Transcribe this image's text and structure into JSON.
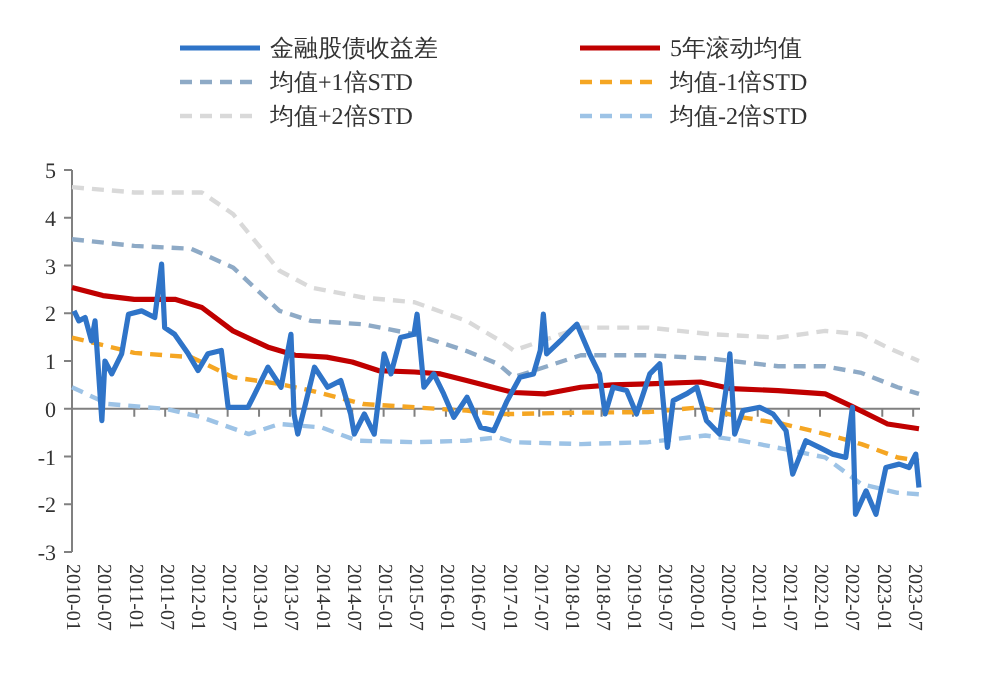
{
  "chart_data": {
    "type": "line",
    "legend": "top",
    "xlim": [
      "2010-01-01",
      "2023-08-10"
    ],
    "ylim": [
      -3,
      5
    ],
    "yticks": [
      -3,
      -2,
      -1,
      0,
      1,
      2,
      3,
      4,
      5
    ],
    "xticks": [
      "2010-01",
      "2010-07",
      "2011-01",
      "2011-07",
      "2012-01",
      "2012-07",
      "2013-01",
      "2013-07",
      "2014-01",
      "2014-07",
      "2015-01",
      "2015-07",
      "2016-01",
      "2016-07",
      "2017-01",
      "2017-07",
      "2018-01",
      "2018-07",
      "2019-01",
      "2019-07",
      "2020-01",
      "2020-07",
      "2021-01",
      "2021-07",
      "2022-01",
      "2022-07",
      "2023-01",
      "2023-07"
    ],
    "series": [
      {
        "name": "金融股债收益差",
        "color": "#2f74c8",
        "line_style": "solid",
        "x": [
          "2010-01-13",
          "2010-02-10",
          "2010-03-19",
          "2010-04-25",
          "2010-05-16",
          "2010-06-25",
          "2010-07-13",
          "2010-08-22",
          "2010-10-19",
          "2010-11-28",
          "2011-02-13",
          "2011-05-01",
          "2011-06-10",
          "2011-06-28",
          "2011-08-25",
          "2011-11-13",
          "2012-01-10",
          "2012-03-07",
          "2012-05-25",
          "2012-07-04",
          "2012-10-28",
          "2012-12-07",
          "2013-02-22",
          "2013-05-10",
          "2013-07-07",
          "2013-07-25",
          "2013-08-16",
          "2013-09-25",
          "2013-11-22",
          "2014-02-07",
          "2014-04-25",
          "2014-06-22",
          "2014-07-13",
          "2014-09-10",
          "2014-11-07",
          "2015-01-04",
          "2015-02-13",
          "2015-04-10",
          "2015-06-28",
          "2015-07-16",
          "2015-08-25",
          "2015-10-22",
          "2015-12-19",
          "2016-02-16",
          "2016-05-04",
          "2016-07-22",
          "2016-10-07",
          "2016-12-25",
          "2017-03-10",
          "2017-05-28",
          "2017-07-07",
          "2017-07-25",
          "2017-08-13",
          "2017-11-01",
          "2017-12-28",
          "2018-02-07",
          "2018-04-22",
          "2018-06-19",
          "2018-07-22",
          "2018-09-07",
          "2018-11-25",
          "2019-01-22",
          "2019-04-10",
          "2019-06-07",
          "2019-07-22",
          "2019-08-25",
          "2019-11-10",
          "2020-01-10",
          "2020-03-07",
          "2020-05-22",
          "2020-07-01",
          "2020-07-22",
          "2020-08-19",
          "2020-10-07",
          "2021-01-13",
          "2021-04-01",
          "2021-06-16",
          "2021-07-25",
          "2021-10-10",
          "2021-12-28",
          "2022-03-16",
          "2022-06-01",
          "2022-07-10",
          "2022-07-28",
          "2022-09-28",
          "2022-11-25",
          "2023-01-22",
          "2023-04-10",
          "2023-06-07",
          "2023-07-16",
          "2023-08-04"
        ],
        "values": [
          2.05,
          1.84,
          1.91,
          1.42,
          1.84,
          -0.25,
          1.0,
          0.73,
          1.15,
          1.98,
          2.05,
          1.91,
          3.03,
          1.7,
          1.56,
          1.15,
          0.8,
          1.15,
          1.22,
          0.03,
          0.03,
          0.31,
          0.87,
          0.45,
          1.56,
          -0.11,
          -0.53,
          0.03,
          0.87,
          0.45,
          0.59,
          -0.11,
          -0.53,
          -0.11,
          -0.53,
          1.15,
          0.73,
          1.49,
          1.56,
          1.98,
          0.45,
          0.73,
          0.31,
          -0.18,
          0.24,
          -0.39,
          -0.46,
          0.17,
          0.66,
          0.73,
          1.22,
          1.98,
          1.15,
          1.42,
          1.63,
          1.77,
          1.15,
          0.73,
          -0.11,
          0.45,
          0.38,
          -0.11,
          0.73,
          0.94,
          -0.81,
          0.17,
          0.31,
          0.45,
          -0.25,
          -0.53,
          0.45,
          1.15,
          -0.53,
          -0.04,
          0.03,
          -0.11,
          -0.46,
          -1.37,
          -0.67,
          -0.81,
          -0.95,
          -1.02,
          0.03,
          -2.21,
          -1.72,
          -2.21,
          -1.23,
          -1.16,
          -1.23,
          -0.95,
          -1.65
        ]
      },
      {
        "name": "5年滚动均值",
        "color": "#c00000",
        "line_style": "solid",
        "x": [
          "2010-01",
          "2010-07",
          "2011-01",
          "2011-09",
          "2012-02",
          "2012-08",
          "2013-03",
          "2013-08",
          "2014-02",
          "2014-07",
          "2014-12",
          "2015-07",
          "2015-12",
          "2016-05",
          "2016-10",
          "2017-02",
          "2017-08",
          "2018-03",
          "2018-09",
          "2019-04",
          "2020-02",
          "2020-08",
          "2021-05",
          "2022-02",
          "2022-07",
          "2023-02",
          "2023-08-04"
        ],
        "values": [
          2.54,
          2.37,
          2.29,
          2.29,
          2.12,
          1.63,
          1.28,
          1.12,
          1.08,
          0.98,
          0.8,
          0.77,
          0.73,
          0.59,
          0.45,
          0.34,
          0.31,
          0.45,
          0.5,
          0.52,
          0.56,
          0.42,
          0.38,
          0.31,
          0.06,
          -0.32,
          -0.42
        ]
      },
      {
        "name": "均值+1倍STD",
        "color": "#8eaac6",
        "line_style": "dashed",
        "x": [
          "2010-01",
          "2011-01",
          "2011-12",
          "2012-08",
          "2013-05",
          "2013-11",
          "2014-09",
          "2015-07",
          "2016-05",
          "2016-11",
          "2017-02",
          "2018-03",
          "2019-04",
          "2020-04",
          "2021-05",
          "2022-02",
          "2022-09",
          "2023-04",
          "2023-08-04"
        ],
        "values": [
          3.55,
          3.41,
          3.35,
          2.96,
          2.05,
          1.84,
          1.77,
          1.56,
          1.21,
          0.94,
          0.66,
          1.12,
          1.12,
          1.05,
          0.89,
          0.89,
          0.75,
          0.45,
          0.31
        ]
      },
      {
        "name": "均值-1倍STD",
        "color": "#f5a623",
        "line_style": "dashed",
        "x": [
          "2010-01",
          "2011-01",
          "2011-12",
          "2012-08",
          "2013-05",
          "2013-11",
          "2014-09",
          "2015-07",
          "2016-05",
          "2016-11",
          "2017-02",
          "2018-03",
          "2019-04",
          "2020-02",
          "2020-10",
          "2021-06",
          "2022-02",
          "2022-09",
          "2023-04",
          "2023-08-04"
        ],
        "values": [
          1.49,
          1.17,
          1.08,
          0.66,
          0.52,
          0.38,
          0.1,
          0.03,
          -0.04,
          -0.11,
          -0.11,
          -0.08,
          -0.07,
          0.03,
          -0.18,
          -0.32,
          -0.53,
          -0.74,
          -1.02,
          -1.09
        ]
      },
      {
        "name": "均值+2倍STD",
        "color": "#d9d9d9",
        "line_style": "dashed",
        "x": [
          "2010-01",
          "2011-01",
          "2012-02",
          "2012-08",
          "2013-05",
          "2013-11",
          "2014-09",
          "2015-07",
          "2016-05",
          "2016-11",
          "2017-02",
          "2018-03",
          "2019-04",
          "2020-04",
          "2021-05",
          "2022-02",
          "2022-09",
          "2023-02",
          "2023-08-04"
        ],
        "values": [
          4.64,
          4.53,
          4.53,
          4.08,
          2.89,
          2.54,
          2.33,
          2.23,
          1.84,
          1.45,
          1.22,
          1.7,
          1.7,
          1.56,
          1.49,
          1.63,
          1.56,
          1.28,
          1.0
        ]
      },
      {
        "name": "均值-2倍STD",
        "color": "#9dc3e6",
        "line_style": "dashed",
        "x": [
          "2010-01",
          "2010-08",
          "2011-07",
          "2012-02",
          "2012-11",
          "2013-05",
          "2014-01",
          "2014-08",
          "2015-07",
          "2016-05",
          "2016-11",
          "2017-02",
          "2018-03",
          "2019-04",
          "2020-03",
          "2020-10",
          "2021-06",
          "2022-02",
          "2022-09",
          "2023-04",
          "2023-08-04"
        ],
        "values": [
          0.45,
          0.1,
          0,
          -0.18,
          -0.53,
          -0.32,
          -0.39,
          -0.67,
          -0.7,
          -0.67,
          -0.6,
          -0.7,
          -0.74,
          -0.7,
          -0.56,
          -0.67,
          -0.84,
          -1.02,
          -1.58,
          -1.76,
          -1.79
        ]
      }
    ]
  }
}
